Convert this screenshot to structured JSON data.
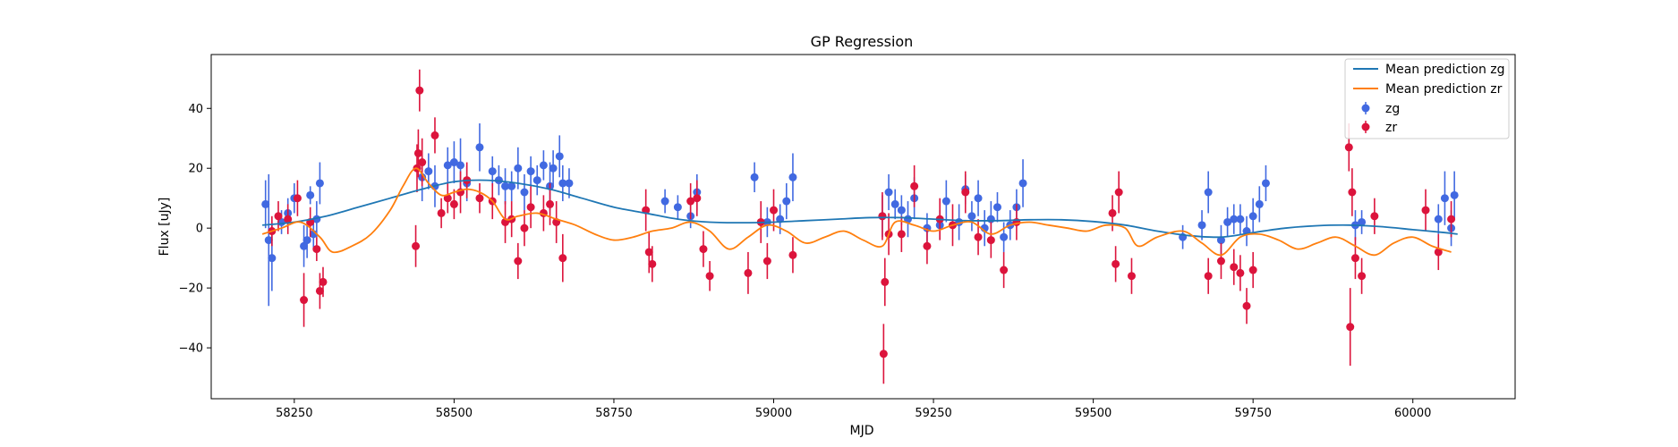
{
  "chart_data": {
    "type": "scatter",
    "title": "GP Regression",
    "xlabel": "MJD",
    "ylabel": "Flux [uJy]",
    "xlim": [
      58120,
      60160
    ],
    "ylim": [
      -57,
      58
    ],
    "xticks": [
      58250,
      58500,
      58750,
      59000,
      59250,
      59500,
      59750,
      60000
    ],
    "yticks": [
      -40,
      -20,
      0,
      20,
      40
    ],
    "grid": false,
    "legend_position": "top-right",
    "lines": [
      {
        "name": "Mean prediction zg",
        "color": "#1f77b4",
        "x": [
          58200,
          58250,
          58300,
          58350,
          58400,
          58450,
          58500,
          58550,
          58600,
          58650,
          58700,
          58750,
          58800,
          58850,
          58900,
          58950,
          59000,
          59050,
          59100,
          59150,
          59200,
          59250,
          59300,
          59350,
          59400,
          59450,
          59500,
          59550,
          59600,
          59650,
          59700,
          59750,
          59800,
          59850,
          59900,
          59950,
          60000,
          60050,
          60070
        ],
        "y": [
          1,
          2,
          4,
          7,
          10,
          13,
          15.5,
          16,
          15,
          13,
          10,
          7,
          5,
          3,
          2,
          1.8,
          2,
          2.5,
          3,
          3.5,
          3.5,
          3,
          2.5,
          2.5,
          2.8,
          2.8,
          2.2,
          1,
          -1,
          -2.5,
          -3,
          -1.5,
          0,
          0.8,
          1,
          0.5,
          -0.5,
          -1.5,
          -2
        ]
      },
      {
        "name": "Mean prediction zr",
        "color": "#ff7f0e",
        "x": [
          58200,
          58230,
          58260,
          58290,
          58310,
          58340,
          58370,
          58400,
          58420,
          58440,
          58460,
          58480,
          58500,
          58520,
          58540,
          58560,
          58580,
          58600,
          58630,
          58660,
          58690,
          58720,
          58750,
          58780,
          58810,
          58840,
          58870,
          58900,
          58930,
          58960,
          58990,
          59020,
          59050,
          59080,
          59110,
          59140,
          59170,
          59190,
          59220,
          59250,
          59280,
          59310,
          59340,
          59370,
          59400,
          59430,
          59460,
          59490,
          59520,
          59550,
          59570,
          59600,
          59640,
          59670,
          59700,
          59730,
          59760,
          59790,
          59820,
          59850,
          59880,
          59910,
          59940,
          59970,
          60000,
          60030,
          60060
        ],
        "y": [
          -2,
          0,
          2,
          -3,
          -8,
          -6,
          -2,
          6,
          14,
          20,
          15,
          11,
          12,
          13,
          12,
          9,
          3,
          4,
          5,
          3,
          1,
          -2,
          -4,
          -3,
          -1,
          0,
          2,
          -1,
          -7,
          -3,
          1,
          -1,
          -5,
          -3,
          -1,
          -4,
          -6,
          2,
          1,
          -1,
          1,
          2,
          -2,
          1,
          2,
          1,
          0,
          -1,
          1,
          0,
          -6,
          -3,
          -1,
          -5,
          -9,
          -3,
          -2,
          -4,
          -7,
          -5,
          -3,
          -6,
          -9,
          -5,
          -3,
          -6,
          -8
        ]
      }
    ],
    "series": [
      {
        "name": "zg",
        "color": "#4169e1",
        "x": [
          58205,
          58210,
          58215,
          58230,
          58240,
          58250,
          58265,
          58270,
          58275,
          58280,
          58285,
          58290,
          58450,
          58460,
          58470,
          58490,
          58500,
          58510,
          58520,
          58540,
          58560,
          58570,
          58580,
          58590,
          58600,
          58610,
          58620,
          58630,
          58640,
          58650,
          58655,
          58665,
          58670,
          58680,
          58830,
          58850,
          58870,
          58880,
          58970,
          58990,
          59010,
          59020,
          59030,
          59170,
          59180,
          59190,
          59200,
          59210,
          59220,
          59240,
          59260,
          59270,
          59290,
          59300,
          59310,
          59320,
          59330,
          59340,
          59350,
          59360,
          59370,
          59380,
          59390,
          59640,
          59670,
          59680,
          59700,
          59710,
          59720,
          59730,
          59740,
          59750,
          59760,
          59770,
          59910,
          59920,
          60040,
          60050,
          60060,
          60065
        ],
        "y": [
          8,
          -4,
          -10,
          2,
          5,
          10,
          -6,
          -4,
          11,
          -2,
          3,
          15,
          17,
          19,
          14,
          21,
          22,
          21,
          15,
          27,
          19,
          16,
          14,
          14,
          20,
          12,
          19,
          16,
          21,
          14,
          20,
          24,
          15,
          15,
          9,
          7,
          4,
          12,
          17,
          2,
          3,
          9,
          17,
          4,
          12,
          8,
          6,
          3,
          10,
          0,
          1,
          9,
          2,
          13,
          4,
          10,
          0,
          3,
          7,
          -3,
          1,
          7,
          15,
          -3,
          1,
          12,
          -4,
          2,
          3,
          3,
          -1,
          4,
          8,
          15,
          1,
          2,
          3,
          10,
          0,
          11
        ],
        "err": [
          8,
          22,
          11,
          4,
          5,
          5,
          7,
          6,
          3,
          5,
          6,
          7,
          8,
          6,
          7,
          6,
          7,
          9,
          6,
          8,
          5,
          5,
          6,
          5,
          7,
          6,
          5,
          5,
          5,
          8,
          6,
          7,
          6,
          5,
          4,
          4,
          4,
          6,
          5,
          5,
          5,
          6,
          8,
          7,
          6,
          5,
          5,
          6,
          7,
          5,
          5,
          7,
          6,
          5,
          5,
          6,
          6,
          6,
          5,
          5,
          5,
          6,
          8,
          4,
          5,
          7,
          5,
          5,
          5,
          5,
          5,
          6,
          6,
          6,
          5,
          4,
          5,
          9,
          6,
          8
        ]
      },
      {
        "name": "zr",
        "color": "#dc143c",
        "x": [
          58215,
          58225,
          58240,
          58255,
          58265,
          58275,
          58285,
          58290,
          58295,
          58440,
          58442,
          58444,
          58446,
          58450,
          58470,
          58480,
          58490,
          58500,
          58510,
          58520,
          58540,
          58560,
          58580,
          58590,
          58600,
          58610,
          58620,
          58640,
          58650,
          58660,
          58670,
          58800,
          58805,
          58810,
          58870,
          58880,
          58890,
          58900,
          58960,
          58980,
          58990,
          59000,
          59030,
          59170,
          59172,
          59174,
          59180,
          59200,
          59220,
          59240,
          59260,
          59280,
          59300,
          59320,
          59340,
          59360,
          59380,
          59530,
          59535,
          59540,
          59560,
          59680,
          59700,
          59720,
          59730,
          59740,
          59750,
          59900,
          59902,
          59905,
          59910,
          59920,
          59940,
          60020,
          60040,
          60060
        ],
        "y": [
          -1,
          4,
          3,
          10,
          -24,
          2,
          -7,
          -21,
          -18,
          -6,
          20,
          25,
          46,
          22,
          31,
          5,
          10,
          8,
          12,
          16,
          10,
          9,
          2,
          3,
          -11,
          0,
          7,
          5,
          8,
          2,
          -10,
          6,
          -8,
          -12,
          9,
          10,
          -7,
          -16,
          -15,
          2,
          -11,
          6,
          -9,
          4,
          -42,
          -18,
          -2,
          -2,
          14,
          -6,
          3,
          1,
          12,
          -3,
          -4,
          -14,
          2,
          5,
          -12,
          12,
          -16,
          -16,
          -11,
          -13,
          -15,
          -26,
          -14,
          27,
          -33,
          12,
          -10,
          -16,
          4,
          6,
          -8,
          3
        ],
        "err": [
          5,
          5,
          5,
          6,
          9,
          5,
          4,
          6,
          5,
          7,
          8,
          8,
          7,
          8,
          6,
          5,
          5,
          5,
          7,
          6,
          5,
          6,
          7,
          6,
          6,
          6,
          7,
          6,
          7,
          7,
          8,
          7,
          7,
          6,
          6,
          6,
          6,
          5,
          7,
          7,
          6,
          7,
          6,
          8,
          10,
          8,
          7,
          6,
          7,
          6,
          7,
          7,
          7,
          6,
          6,
          6,
          6,
          6,
          6,
          7,
          6,
          6,
          6,
          6,
          6,
          6,
          6,
          8,
          13,
          8,
          7,
          6,
          6,
          7,
          6,
          6
        ]
      }
    ]
  }
}
